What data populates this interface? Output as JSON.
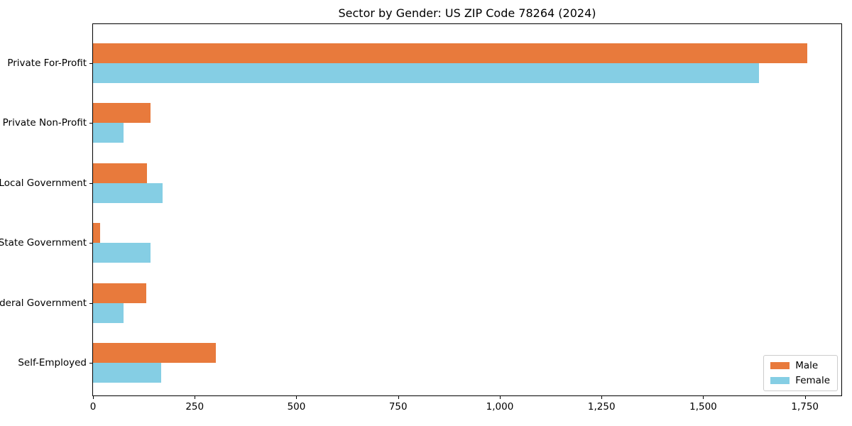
{
  "chart_data": {
    "type": "bar",
    "orientation": "horizontal",
    "title": "Sector by Gender: US ZIP Code 78264 (2024)",
    "xlabel": "",
    "ylabel": "",
    "grid": false,
    "background": "#ffffff",
    "categories": [
      "Private For-Profit",
      "Private Non-Profit",
      "Local Government",
      "State Government",
      "Federal Government",
      "Self-Employed"
    ],
    "series": [
      {
        "name": "Male",
        "color": "#E87A3C",
        "values": [
          1755,
          142,
          133,
          18,
          131,
          302
        ]
      },
      {
        "name": "Female",
        "color": "#85CEE4",
        "values": [
          1637,
          75,
          171,
          142,
          75,
          168
        ]
      }
    ],
    "xlim": [
      0,
      1843
    ],
    "xticks": [
      {
        "value": 0,
        "label": "0"
      },
      {
        "value": 250,
        "label": "250"
      },
      {
        "value": 500,
        "label": "500"
      },
      {
        "value": 750,
        "label": "750"
      },
      {
        "value": 1000,
        "label": "1,000"
      },
      {
        "value": 1250,
        "label": "1,250"
      },
      {
        "value": 1500,
        "label": "1,500"
      },
      {
        "value": 1750,
        "label": "1,750"
      }
    ],
    "legend": {
      "position": "lower right",
      "labels": [
        "Male",
        "Female"
      ]
    }
  }
}
